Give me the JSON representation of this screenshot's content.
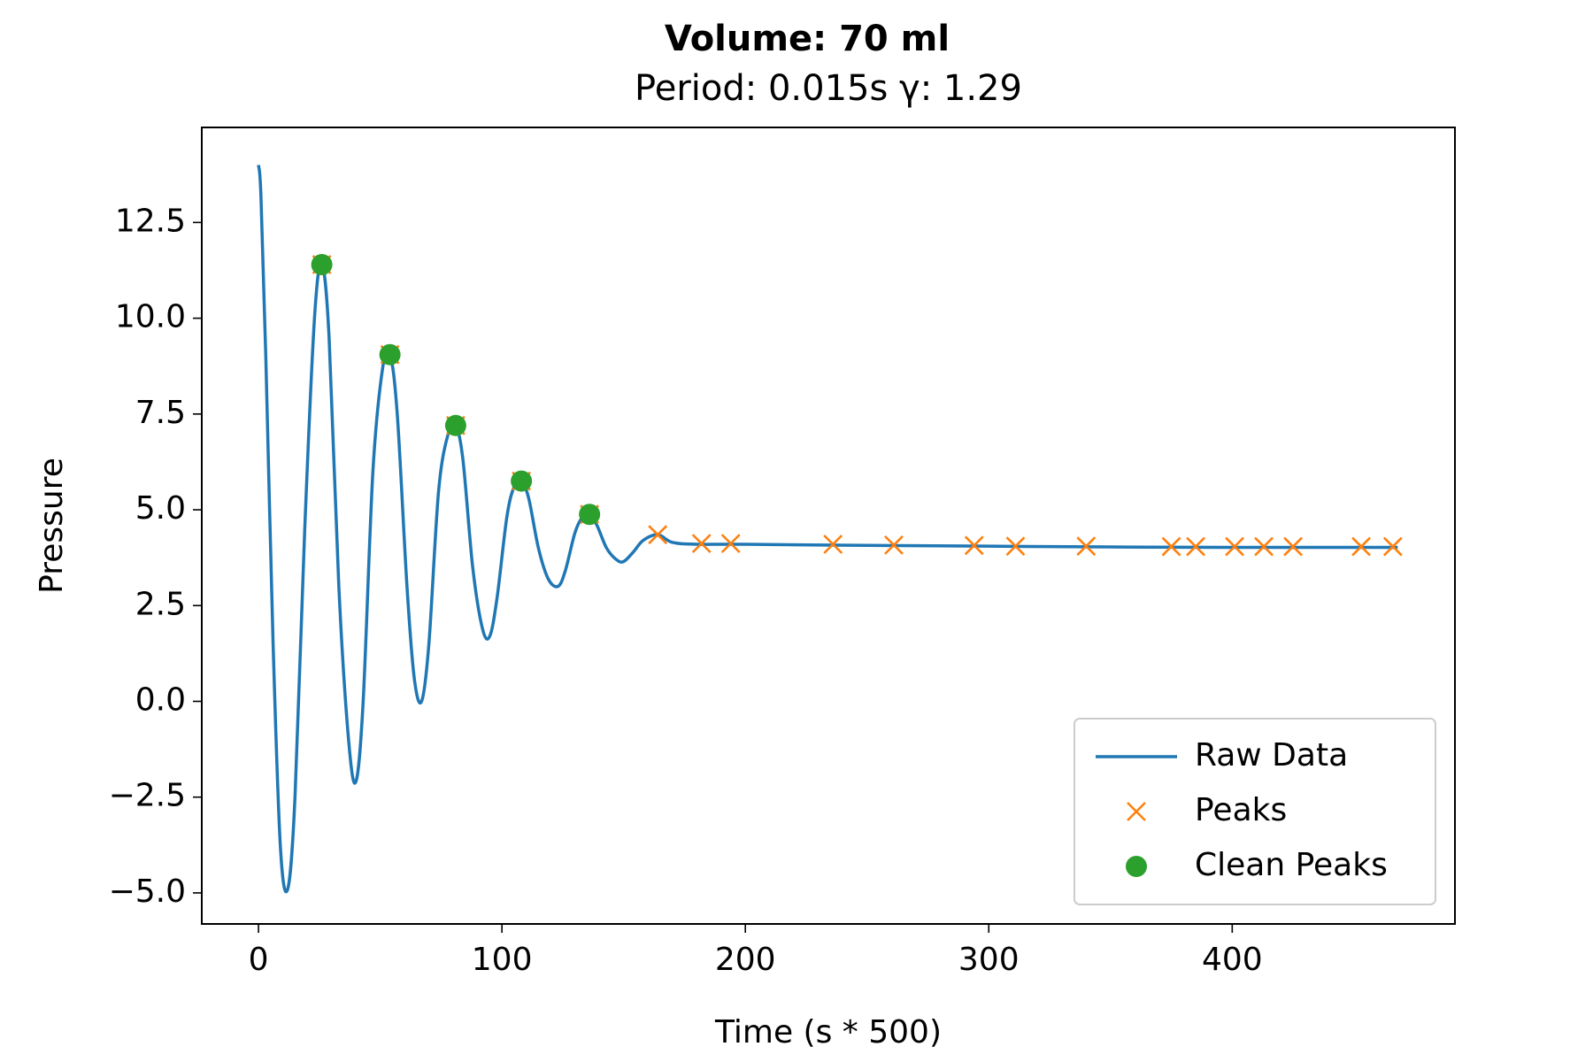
{
  "chart_data": {
    "type": "line",
    "title": "Volume: 70 ml",
    "subtitle": "Period: 0.015s γ: 1.29",
    "x_label": "Time (s * 500)",
    "y_label": "Pressure",
    "xlim": [
      -23.3,
      491.5
    ],
    "ylim": [
      -5.81,
      14.98
    ],
    "xticks": [
      0,
      100,
      200,
      300,
      400
    ],
    "yticks": [
      {
        "value": -5,
        "label": "−5.0"
      },
      {
        "value": -2.5,
        "label": "−2.5"
      },
      {
        "value": 0,
        "label": "0.0"
      },
      2.5,
      {
        "value": 5,
        "label": "5.0"
      },
      7.5,
      {
        "value": 10,
        "label": "10.0"
      },
      12.5
    ],
    "grid": false,
    "legend_position": "lower right",
    "series": [
      {
        "name": "Raw Data",
        "color": "#1f77b4",
        "style": "line",
        "x": [
          0,
          1,
          3,
          6,
          9,
          12,
          15,
          19,
          23,
          26,
          29,
          33,
          37,
          40,
          43,
          47,
          51,
          54,
          57,
          61,
          64,
          67,
          70,
          74,
          78,
          81,
          84,
          88,
          92,
          95,
          98,
          102,
          105,
          108,
          111,
          115,
          119,
          123,
          126,
          130,
          133,
          136,
          139,
          143,
          147,
          150,
          154,
          158,
          164,
          170,
          180,
          200,
          250,
          300,
          350,
          400,
          468
        ],
        "values": [
          14.0,
          13.2,
          9.0,
          1.5,
          -3.8,
          -4.9,
          -2.5,
          4.5,
          10.0,
          11.4,
          9.5,
          3.0,
          -1.0,
          -2.1,
          0.0,
          6.0,
          8.7,
          9.05,
          7.5,
          3.0,
          0.6,
          0.0,
          1.5,
          5.5,
          7.0,
          7.2,
          6.3,
          3.5,
          1.9,
          1.7,
          2.7,
          4.8,
          5.6,
          5.75,
          5.3,
          4.0,
          3.2,
          3.0,
          3.4,
          4.4,
          4.8,
          4.88,
          4.6,
          4.0,
          3.7,
          3.65,
          3.9,
          4.2,
          4.35,
          4.15,
          4.1,
          4.1,
          4.07,
          4.05,
          4.03,
          4.02,
          4.02
        ]
      },
      {
        "name": "Peaks",
        "color": "#ff7f0e",
        "style": "x",
        "x": [
          26,
          54,
          81,
          108,
          136,
          164,
          182,
          194,
          236,
          261,
          294,
          311,
          340,
          375,
          385,
          401,
          413,
          425,
          453,
          466
        ],
        "values": [
          11.4,
          9.05,
          7.2,
          5.75,
          4.88,
          4.35,
          4.12,
          4.12,
          4.1,
          4.08,
          4.07,
          4.05,
          4.05,
          4.04,
          4.04,
          4.04,
          4.04,
          4.04,
          4.04,
          4.04
        ]
      },
      {
        "name": "Clean Peaks",
        "color": "#2ca02c",
        "style": "o",
        "x": [
          26,
          54,
          81,
          108,
          136
        ],
        "values": [
          11.4,
          9.05,
          7.2,
          5.75,
          4.88
        ]
      }
    ]
  }
}
